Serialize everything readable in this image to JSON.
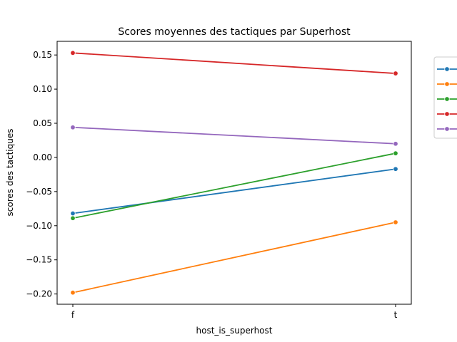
{
  "chart_data": {
    "type": "line",
    "title": "Scores moyennes des tactiques par Superhost",
    "xlabel": "host_is_superhost",
    "ylabel": "scores des tactiques",
    "categories": [
      "f",
      "t"
    ],
    "ylim": [
      -0.215,
      0.17
    ],
    "yticks": [
      -0.2,
      -0.15,
      -0.1,
      -0.05,
      0.0,
      0.05,
      0.1,
      0.15
    ],
    "ytick_labels": [
      "−0.20",
      "−0.15",
      "−0.10",
      "−0.05",
      "0.00",
      "0.05",
      "0.10",
      "0.15"
    ],
    "grid": false,
    "legend_position": "outside-right",
    "series": [
      {
        "color": "#1f77b4",
        "values": [
          -0.082,
          -0.017
        ]
      },
      {
        "color": "#ff7f0e",
        "values": [
          -0.198,
          -0.095
        ]
      },
      {
        "color": "#2ca02c",
        "values": [
          -0.089,
          0.006
        ]
      },
      {
        "color": "#d62728",
        "values": [
          0.153,
          0.123
        ]
      },
      {
        "color": "#9467bd",
        "values": [
          0.044,
          0.02
        ]
      }
    ]
  }
}
